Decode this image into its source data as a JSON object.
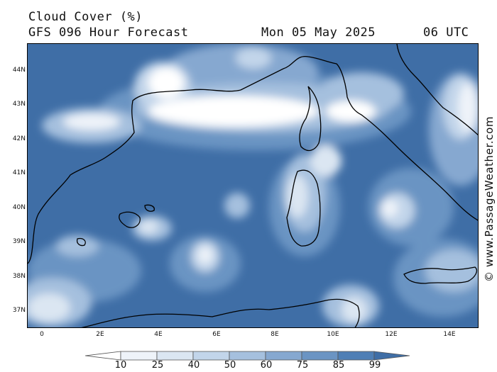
{
  "header": {
    "title": "Cloud Cover (%)",
    "subtitle": "GFS 096 Hour Forecast",
    "date": "Mon 05 May 2025",
    "time": "06 UTC"
  },
  "credit": "© www.PassageWeather.com",
  "lat_labels": [
    "44N",
    "43N",
    "42N",
    "41N",
    "40N",
    "39N",
    "38N",
    "37N"
  ],
  "lon_labels": [
    "0",
    "2E",
    "4E",
    "6E",
    "8E",
    "10E",
    "12E",
    "14E"
  ],
  "legend": {
    "values": [
      "10",
      "25",
      "40",
      "50",
      "60",
      "75",
      "85",
      "99"
    ],
    "colors": [
      "#ffffff",
      "#eef3f9",
      "#dbe6f2",
      "#c2d5ea",
      "#a5c0de",
      "#86a8d0",
      "#6b94c3",
      "#4f7fb5",
      "#3f6ea6"
    ]
  }
}
